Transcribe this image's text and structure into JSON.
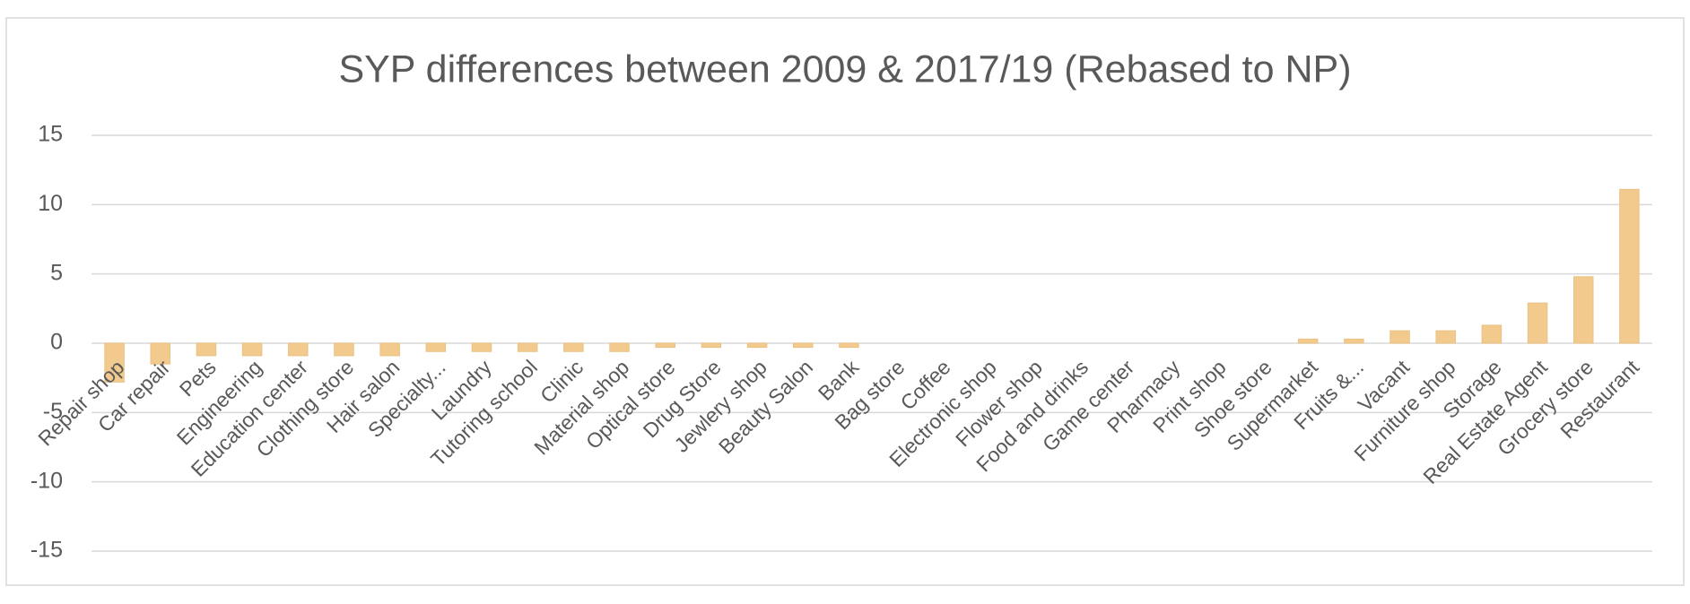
{
  "chart_data": {
    "type": "bar",
    "title": "SYP differences between 2009 & 2017/19 (Rebased to NP)",
    "categories": [
      "Repair shop",
      "Car repair",
      "Pets",
      "Engineering",
      "Education center",
      "Clothing store",
      "Hair salon",
      "Specialty...",
      "Laundry",
      "Tutoring school",
      "Clinic",
      "Material shop",
      "Optical store",
      "Drug Store",
      "Jewlery shop",
      "Beauty Salon",
      "Bank",
      "Bag store",
      "Coffee",
      "Electronic shop",
      "Flower shop",
      "Food and drinks",
      "Game center",
      "Pharmacy",
      "Print shop",
      "Shoe store",
      "Supermarket",
      "Fruits &...",
      "Vacant",
      "Furniture shop",
      "Storage",
      "Real Estate Agent",
      "Grocery store",
      "Restaurant"
    ],
    "values": [
      -2.8,
      -1.5,
      -0.9,
      -0.9,
      -0.9,
      -0.9,
      -0.9,
      -0.6,
      -0.6,
      -0.6,
      -0.6,
      -0.6,
      -0.3,
      -0.3,
      -0.3,
      -0.3,
      -0.3,
      0,
      0,
      0,
      0,
      0,
      0,
      0,
      0,
      0,
      0.3,
      0.3,
      0.9,
      0.9,
      1.3,
      2.9,
      4.8,
      11.1
    ],
    "color": "#f2ca8e",
    "ylim": [
      -15,
      15
    ],
    "yticks": [
      -15,
      -10,
      -5,
      0,
      5,
      10,
      15
    ],
    "grid": true
  }
}
